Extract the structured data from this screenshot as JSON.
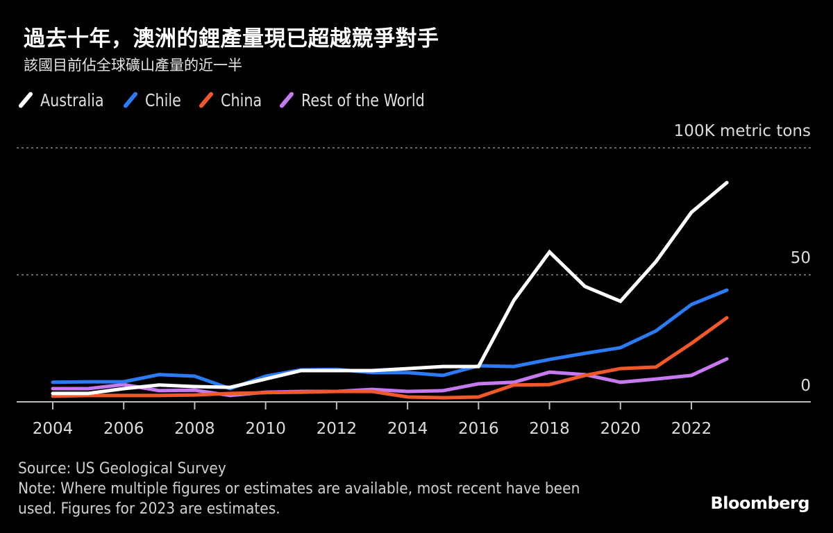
{
  "header": {
    "title": "過去十年，澳洲的鋰產量現已超越競爭對手",
    "subtitle": "該國目前佔全球礦山產量的近一半"
  },
  "legend": [
    {
      "label": "Australia",
      "color": "#ffffff"
    },
    {
      "label": "Chile",
      "color": "#2d7bf4"
    },
    {
      "label": "China",
      "color": "#f2592a"
    },
    {
      "label": "Rest of the World",
      "color": "#c779f0"
    }
  ],
  "footer": {
    "source": "Source: US Geological Survey",
    "note_line1": "Note: Where multiple figures or estimates are available, most recent have been",
    "note_line2": "used. Figures for 2023 are estimates.",
    "brand": "Bloomberg"
  },
  "chart_data": {
    "type": "line",
    "title": "過去十年，澳洲的鋰產量現已超越競爭對手",
    "subtitle": "該國目前佔全球礦山產量的近一半",
    "xlabel": "",
    "ylabel": "100K metric tons",
    "unit_label": "100K metric tons",
    "x": [
      2004,
      2005,
      2006,
      2007,
      2008,
      2009,
      2010,
      2011,
      2012,
      2013,
      2014,
      2015,
      2016,
      2017,
      2018,
      2019,
      2020,
      2021,
      2022,
      2023
    ],
    "xticks": [
      "2004",
      "2006",
      "2008",
      "2010",
      "2012",
      "2014",
      "2016",
      "2018",
      "2020",
      "2022"
    ],
    "xlim": [
      2003.4,
      2025.8
    ],
    "ylim": [
      0,
      100
    ],
    "yticks": [
      {
        "value": 0,
        "label": "0"
      },
      {
        "value": 50,
        "label": "50"
      },
      {
        "value": 100,
        "label": "100K metric tons"
      }
    ],
    "grid": true,
    "legend_position": "top-left",
    "series": [
      {
        "name": "Australia",
        "color": "#ffffff",
        "values": [
          3.3,
          3.3,
          5.2,
          6.6,
          6.0,
          5.7,
          9.0,
          12.3,
          12.3,
          12.3,
          13.1,
          13.9,
          13.9,
          40.0,
          59.0,
          45.4,
          39.6,
          55.2,
          74.6,
          86.3
        ]
      },
      {
        "name": "Chile",
        "color": "#2d7bf4",
        "values": [
          7.7,
          7.9,
          7.9,
          10.7,
          10.1,
          5.2,
          10.1,
          12.6,
          12.8,
          11.5,
          11.5,
          10.4,
          14.2,
          13.9,
          16.7,
          19.1,
          21.3,
          27.9,
          38.3,
          44.0
        ]
      },
      {
        "name": "China",
        "color": "#f2592a",
        "values": [
          2.2,
          2.5,
          2.5,
          2.5,
          2.7,
          3.3,
          3.6,
          3.8,
          4.1,
          4.1,
          1.9,
          1.6,
          1.9,
          6.6,
          6.8,
          10.4,
          13.1,
          13.7,
          23.0,
          33.1
        ]
      },
      {
        "name": "Rest of the World",
        "color": "#c779f0",
        "values": [
          5.2,
          5.2,
          6.8,
          4.4,
          4.6,
          2.5,
          3.8,
          4.1,
          4.1,
          4.9,
          4.1,
          4.4,
          7.1,
          7.7,
          11.7,
          10.7,
          7.7,
          9.0,
          10.4,
          16.9
        ]
      }
    ]
  }
}
